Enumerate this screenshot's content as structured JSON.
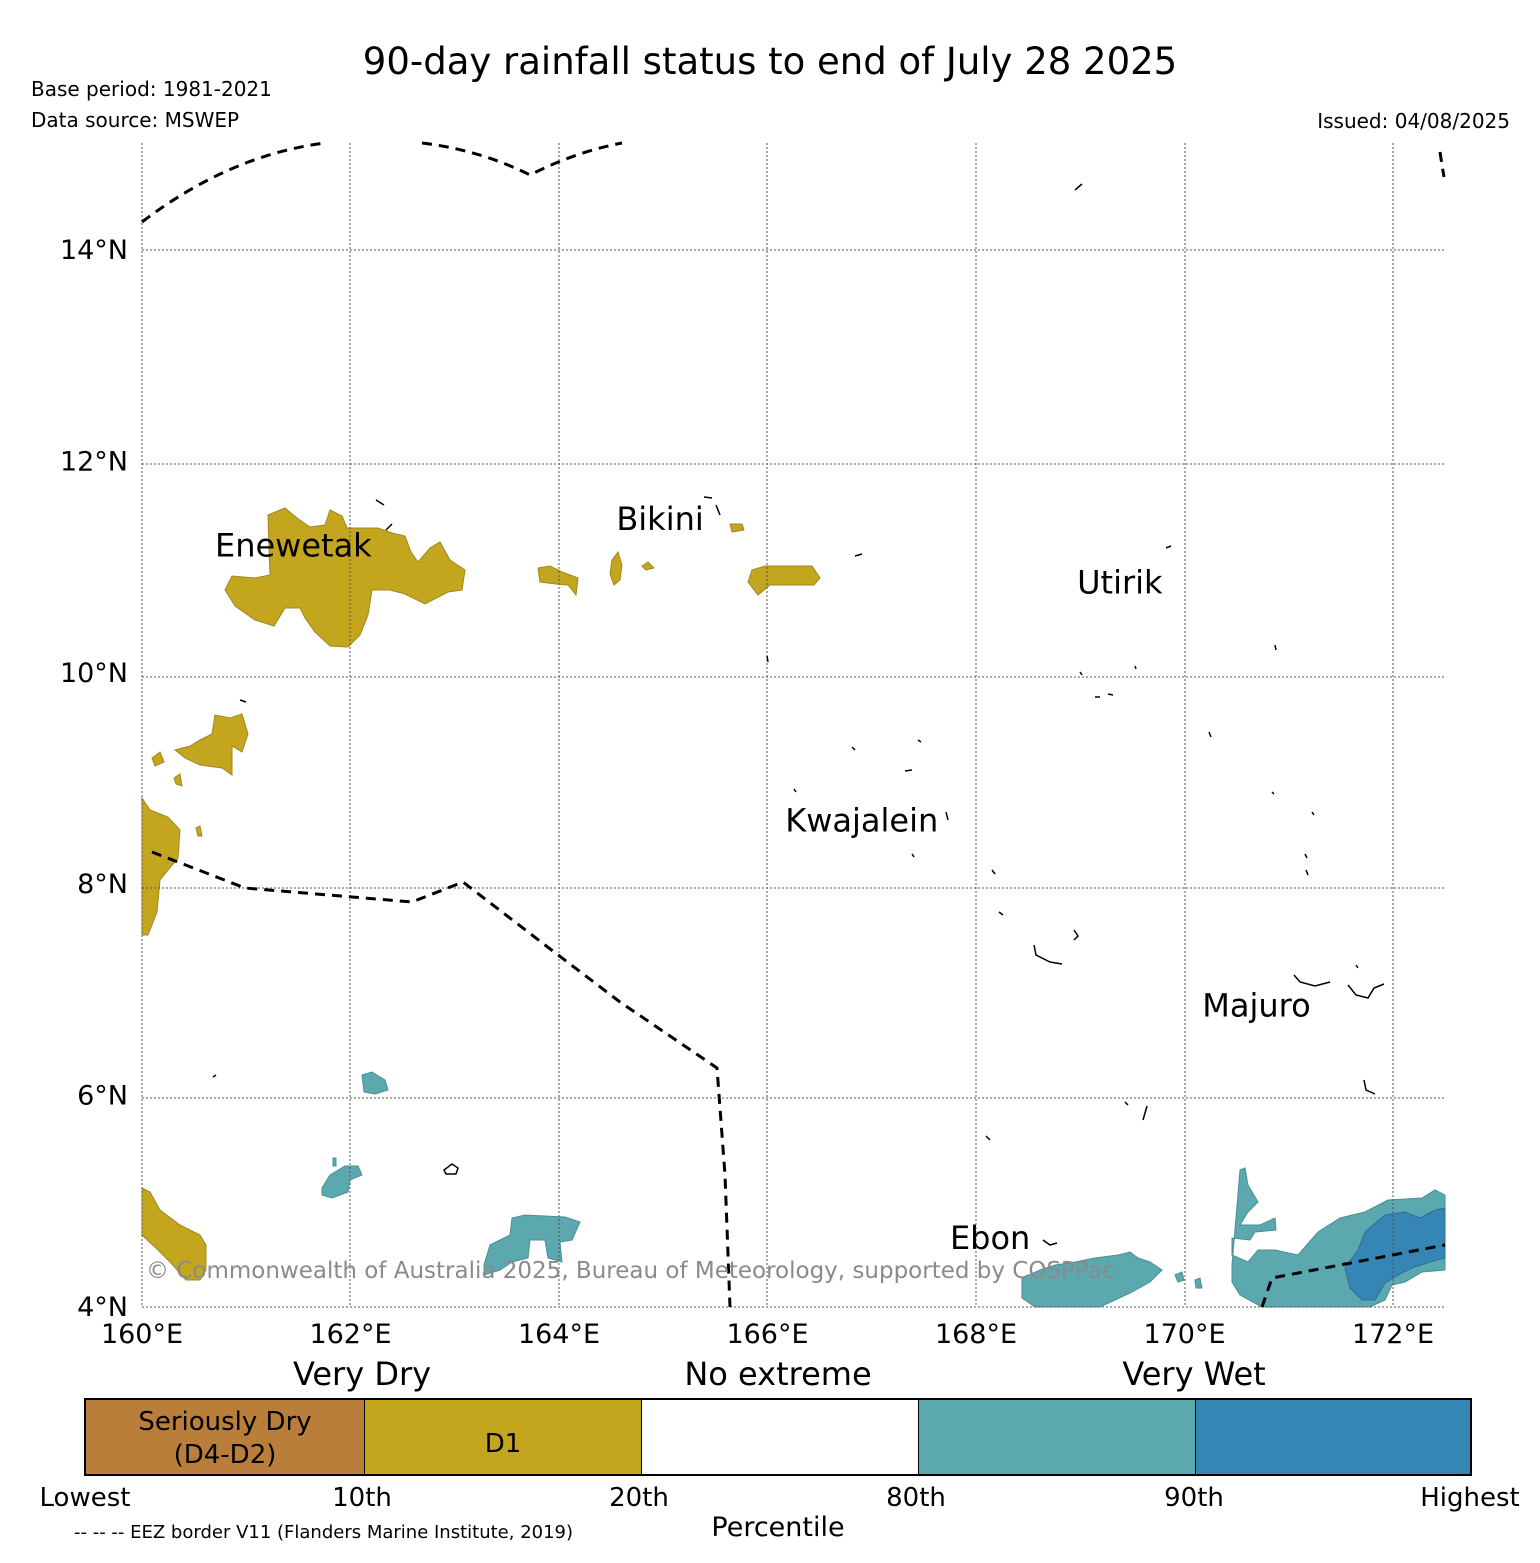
{
  "header": {
    "title": "90-day rainfall status to end of July 28 2025",
    "base_period": "Base period: 1981-2021",
    "data_source": "Data source: MSWEP",
    "issued": "Issued: 04/08/2025"
  },
  "map": {
    "lon_range": [
      160,
      172.5
    ],
    "lat_range": [
      4,
      14.9
    ],
    "lon_ticks": [
      {
        "value": 160,
        "label": "160°E"
      },
      {
        "value": 162,
        "label": "162°E"
      },
      {
        "value": 164,
        "label": "164°E"
      },
      {
        "value": 166,
        "label": "166°E"
      },
      {
        "value": 168,
        "label": "168°E"
      },
      {
        "value": 170,
        "label": "170°E"
      },
      {
        "value": 172,
        "label": "172°E"
      }
    ],
    "lat_ticks": [
      {
        "value": 4,
        "label": "4°N"
      },
      {
        "value": 6,
        "label": "6°N"
      },
      {
        "value": 8,
        "label": "8°N"
      },
      {
        "value": 10,
        "label": "10°N"
      },
      {
        "value": 12,
        "label": "12°N"
      },
      {
        "value": 14,
        "label": "14°N"
      }
    ],
    "gridlines": true,
    "places": [
      {
        "name": "Enewetak",
        "lon": 160.7,
        "lat": 11.1
      },
      {
        "name": "Bikini",
        "lon": 164.55,
        "lat": 11.35
      },
      {
        "name": "Utirik",
        "lon": 168.97,
        "lat": 10.75
      },
      {
        "name": "Kwajalein",
        "lon": 166.17,
        "lat": 8.5
      },
      {
        "name": "Majuro",
        "lon": 170.17,
        "lat": 6.75
      },
      {
        "name": "Ebon",
        "lon": 167.75,
        "lat": 4.55
      }
    ],
    "copyright": "© Commonwealth of Australia 2025, Bureau of Meteorology, supported by COSPPac"
  },
  "categories": {
    "very_dry": "Very Dry",
    "no_extreme": "No extreme",
    "very_wet": "Very Wet"
  },
  "legend": {
    "segments": [
      {
        "label_line1": "Seriously Dry",
        "label_line2": "(D4-D2)",
        "color": "#b97f3a"
      },
      {
        "label_line1": "D1",
        "label_line2": "",
        "color": "#c4a51e"
      },
      {
        "label_line1": "",
        "label_line2": "",
        "color": "#ffffff"
      },
      {
        "label_line1": "",
        "label_line2": "",
        "color": "#5ba8ae"
      },
      {
        "label_line1": "",
        "label_line2": "",
        "color": "#3585b5"
      }
    ],
    "percentiles": [
      "Lowest",
      "10th",
      "20th",
      "80th",
      "90th",
      "Highest"
    ],
    "title": "Percentile",
    "eez_note": "-- -- -- EEZ border V11 (Flanders Marine Institute, 2019)"
  },
  "colors": {
    "d1": "#c4a51e",
    "very_wet_80_90": "#5ba8ae",
    "very_wet_90_plus": "#3585b5",
    "eez_border": "#000000"
  }
}
